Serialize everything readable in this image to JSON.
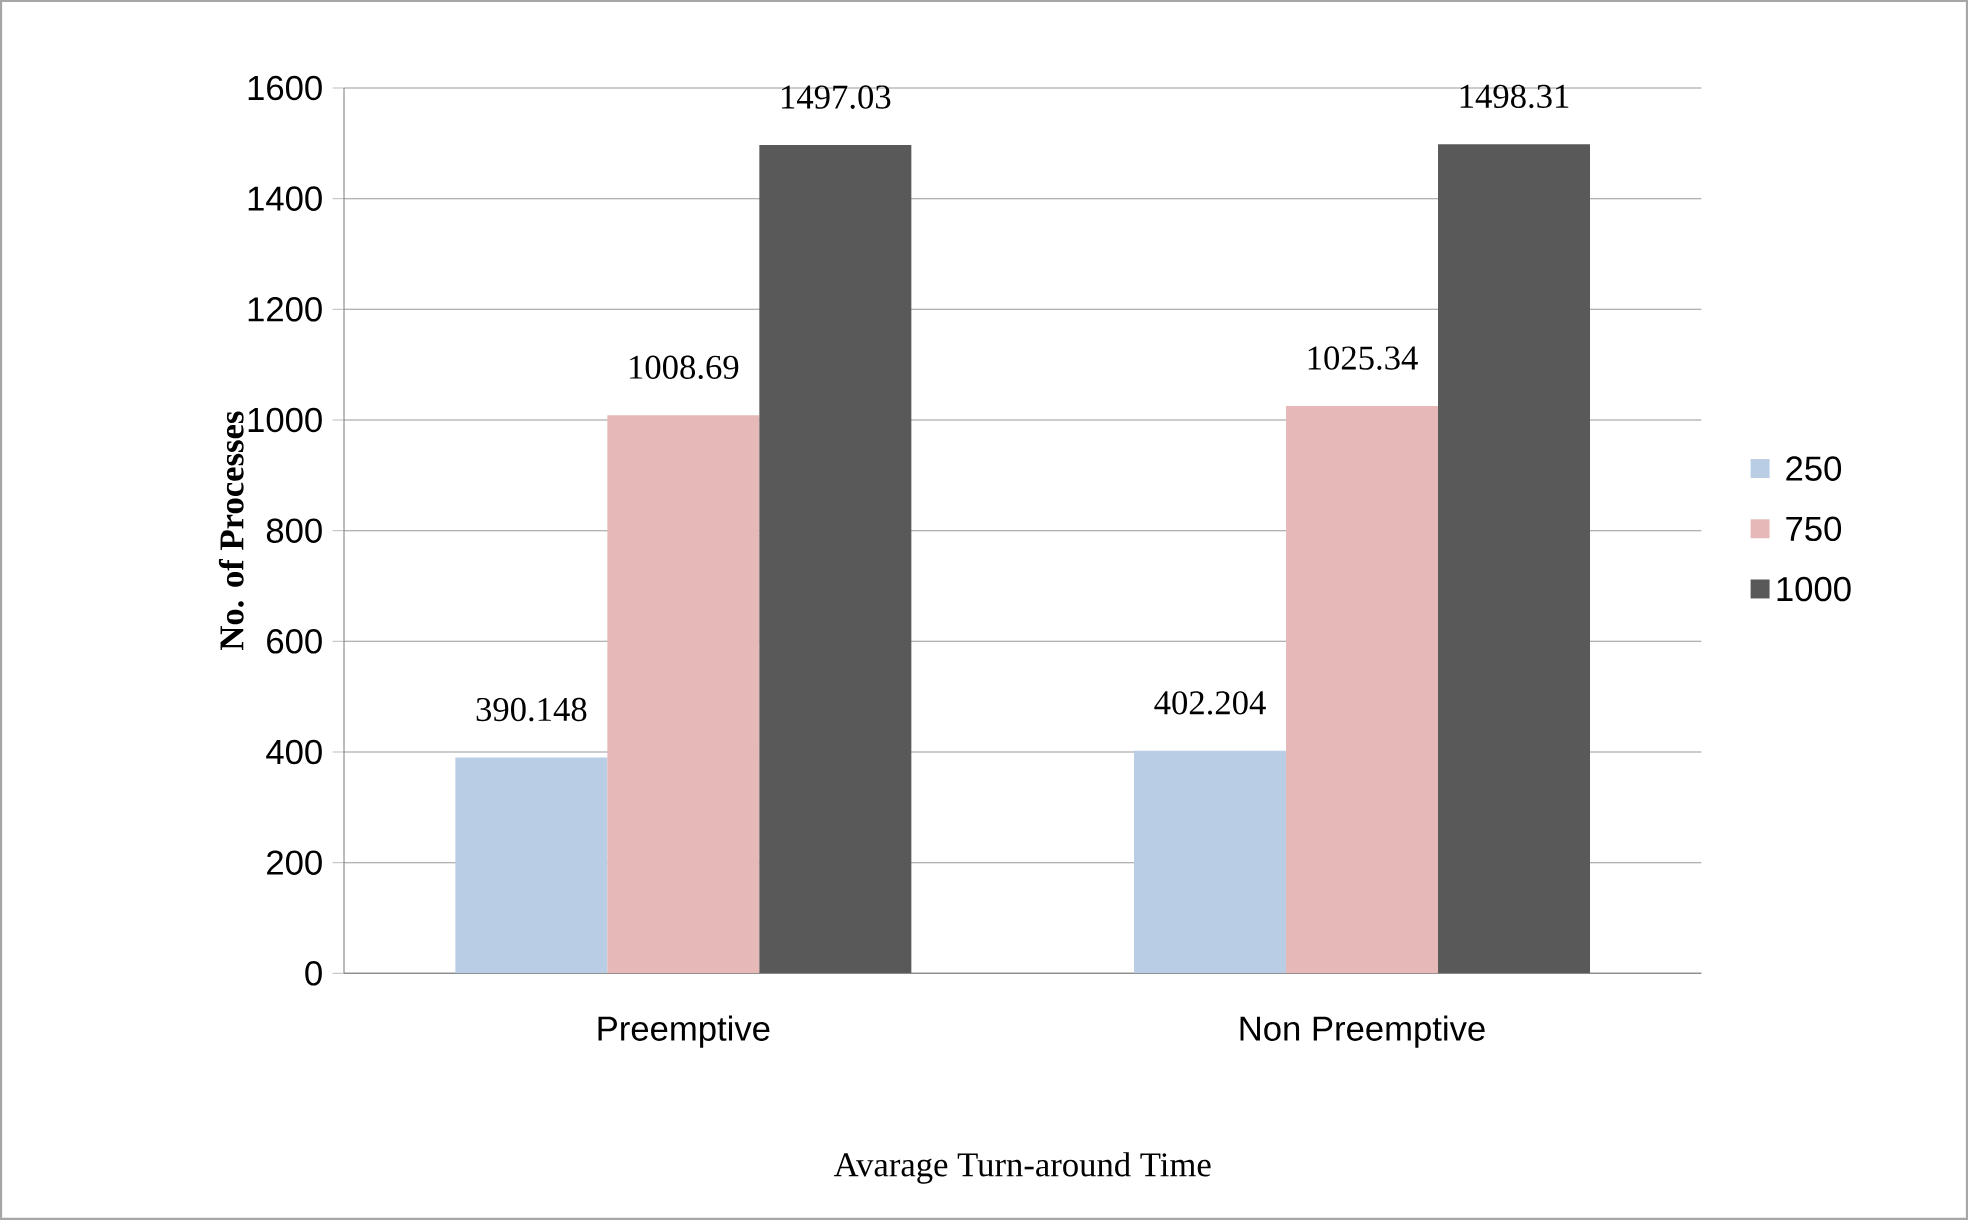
{
  "chart_data": {
    "type": "bar",
    "xlabel": "Avarage Turn-around Time",
    "ylabel": "No. of Processes",
    "categories": [
      "Preemptive",
      "Non Preemptive"
    ],
    "series": [
      {
        "name": "250",
        "color": "#b9cde5",
        "values": [
          390.148,
          402.204
        ]
      },
      {
        "name": "750",
        "color": "#e6b9b8",
        "values": [
          1008.69,
          1025.34
        ]
      },
      {
        "name": "1000",
        "color": "#595959",
        "values": [
          1497.03,
          1498.31
        ]
      }
    ],
    "ylim": [
      0,
      1600
    ],
    "yticks": [
      0,
      200,
      400,
      600,
      800,
      1000,
      1200,
      1400,
      1600
    ],
    "grid": "y",
    "legend": "right",
    "data_labels": true
  }
}
